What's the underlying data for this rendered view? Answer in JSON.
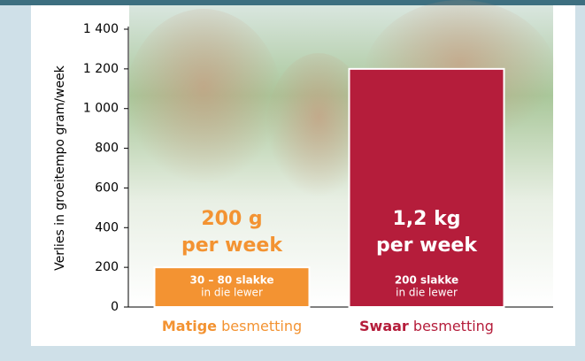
{
  "chart_data": {
    "type": "bar",
    "y_label": "Verlies in groeitempo gram/week",
    "categories": [
      {
        "bold": "Matige",
        "text": "besmetting"
      },
      {
        "bold": "Swaar",
        "text": "besmetting"
      }
    ],
    "values": [
      200,
      1200
    ],
    "colors": [
      "#f39332",
      "#b51d3b"
    ],
    "annotations": [
      [
        "200 g",
        "per week"
      ],
      [
        "1,2 kg",
        "per week"
      ]
    ],
    "bar_labels": [
      [
        "30 – 80 slakke",
        "in die lewer"
      ],
      [
        "200 slakke",
        "in die lewer"
      ]
    ],
    "ylim": [
      0,
      1400
    ],
    "yticks": [
      0,
      200,
      400,
      600,
      800,
      {
        "value": 1000,
        "label": "1 000"
      },
      {
        "value": 1200,
        "label": "1 200"
      },
      {
        "value": 1400,
        "label": "1 400"
      }
    ]
  }
}
